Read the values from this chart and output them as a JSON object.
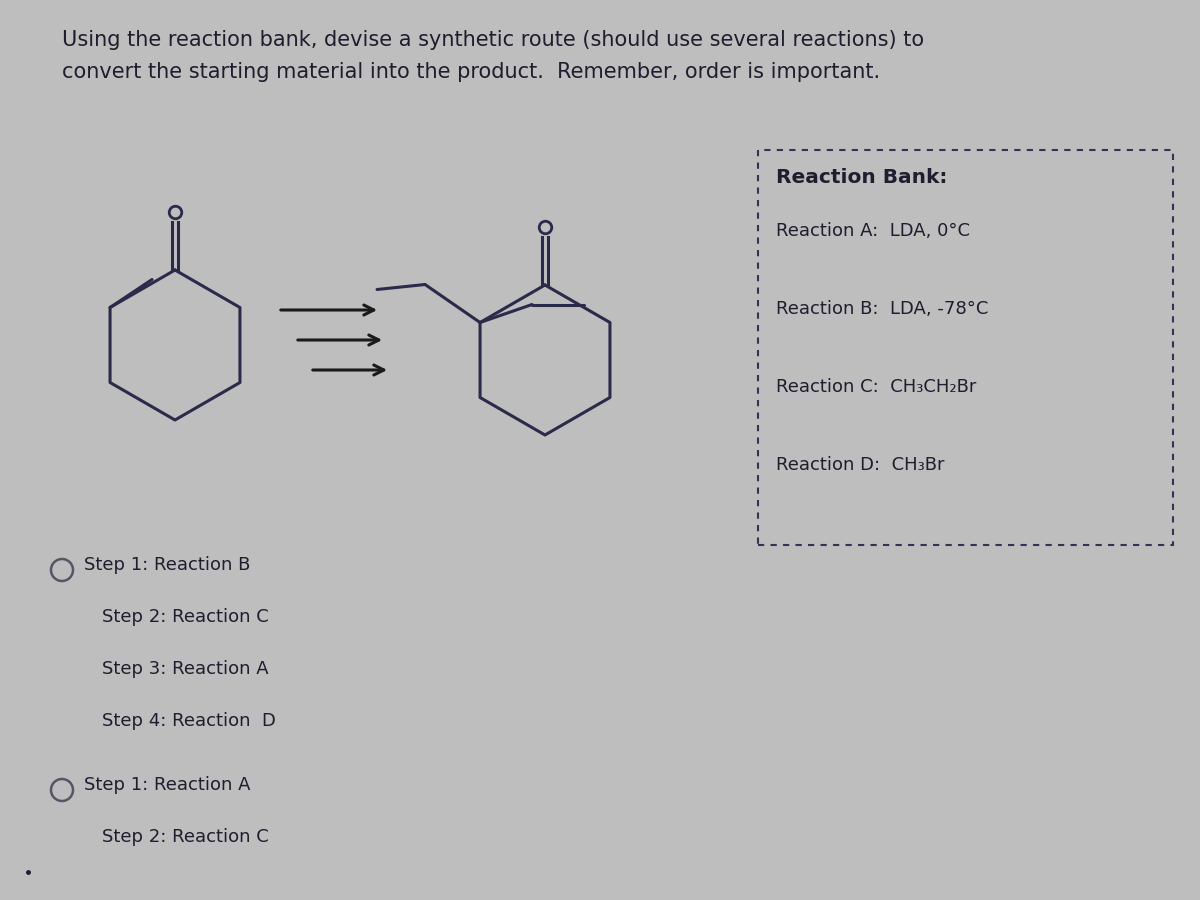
{
  "title_line1": "Using the reaction bank, devise a synthetic route (should use several reactions) to",
  "title_line2": "convert the starting material into the product.  Remember, order is important.",
  "bg_color": "#bebebe",
  "reaction_bank_title": "Reaction Bank:",
  "reactions": [
    "Reaction A:  LDA, 0°C",
    "Reaction B:  LDA, -78°C",
    "Reaction C:  CH₃CH₂Br",
    "Reaction D:  CH₃Br"
  ],
  "answer_options": [
    {
      "radio": true,
      "steps": [
        "Step 1: Reaction B",
        "Step 2: Reaction C",
        "Step 3: Reaction A",
        "Step 4: Reaction  D"
      ]
    },
    {
      "radio": true,
      "steps": [
        "Step 1: Reaction A",
        "Step 2: Reaction C"
      ]
    }
  ],
  "text_color": "#1e1e2e",
  "radio_color": "#555566",
  "mol_color": "#2a2a4a",
  "arrow_color": "#1a1a1a"
}
